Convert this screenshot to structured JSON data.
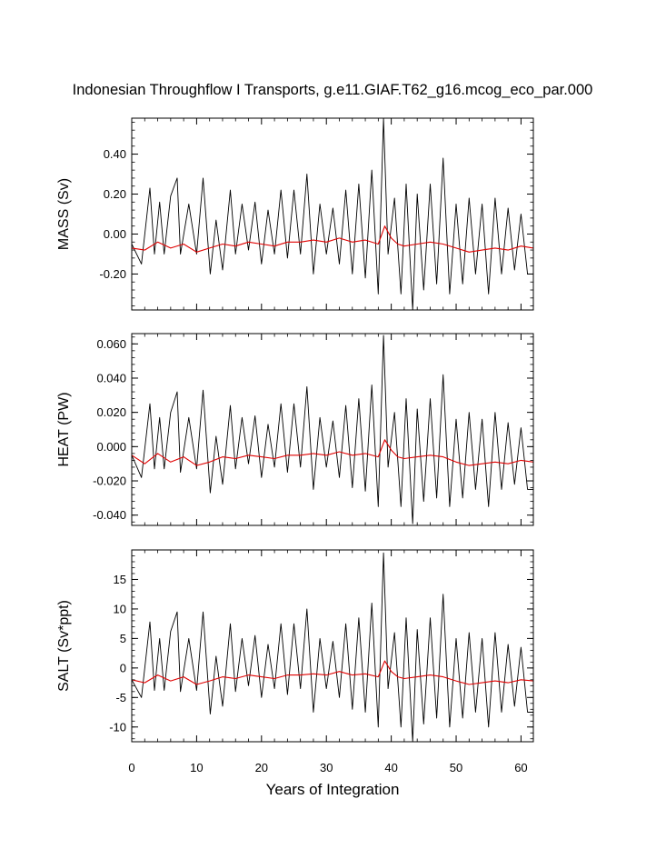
{
  "title": "Indonesian Throughflow I Transports, g.e11.GIAF.T62_g16.mcog_eco_par.000",
  "xlabel": "Years of Integration",
  "colors": {
    "monthly": "#000000",
    "annual": "#e00000",
    "axes": "#000000"
  },
  "chart_data": [
    {
      "type": "line",
      "name": "mass",
      "ylabel": "MASS (Sv)",
      "xlim": [
        0,
        61.9
      ],
      "ylim": [
        -0.38,
        0.58
      ],
      "yticks": [
        -0.2,
        0.0,
        0.2,
        0.4
      ],
      "yticklabels": [
        "-0.20",
        "0.00",
        "0.20",
        "0.40"
      ],
      "xticks": [
        0,
        10,
        20,
        30,
        40,
        50,
        60
      ],
      "xticklabels": [
        "0",
        "10",
        "20",
        "30",
        "40",
        "50",
        "60"
      ],
      "grid": false,
      "series": [
        {
          "role": "monthly",
          "x": [
            0,
            1.5,
            2.8,
            3.5,
            4.3,
            5.0,
            6.0,
            7.0,
            7.5,
            8.8,
            10.0,
            11.0,
            12.1,
            13.0,
            14.0,
            15.2,
            16.0,
            17.0,
            18.0,
            19.0,
            20.0,
            21.0,
            22.0,
            23.0,
            24.0,
            25.0,
            26.0,
            27.0,
            28.0,
            29.0,
            30.0,
            31.0,
            32.0,
            33.0,
            34.0,
            35.0,
            36.0,
            37.0,
            38.0,
            38.8,
            39.5,
            40.5,
            41.5,
            42.3,
            43.3,
            44.0,
            45.0,
            46.0,
            47.0,
            48.0,
            49.0,
            50.0,
            51.0,
            52.0,
            53.0,
            54.0,
            55.0,
            56.0,
            57.0,
            58.0,
            59.0,
            60.0,
            61.0,
            61.9
          ],
          "values": [
            -0.05,
            -0.15,
            0.23,
            -0.1,
            0.16,
            -0.1,
            0.19,
            0.28,
            -0.1,
            0.15,
            -0.1,
            0.28,
            -0.2,
            0.07,
            -0.18,
            0.22,
            -0.1,
            0.15,
            -0.08,
            0.16,
            -0.15,
            0.12,
            -0.1,
            0.22,
            -0.12,
            0.22,
            -0.1,
            0.3,
            -0.2,
            0.15,
            -0.1,
            0.13,
            -0.15,
            0.22,
            -0.2,
            0.25,
            -0.22,
            0.32,
            -0.3,
            0.58,
            -0.1,
            0.18,
            -0.3,
            0.25,
            -0.38,
            0.2,
            -0.28,
            0.25,
            -0.25,
            0.38,
            -0.3,
            0.15,
            -0.25,
            0.18,
            -0.2,
            0.15,
            -0.3,
            0.18,
            -0.2,
            0.13,
            -0.18,
            0.1,
            -0.2,
            -0.2
          ]
        },
        {
          "role": "annual",
          "x": [
            0,
            2,
            4,
            6,
            8,
            10,
            12,
            14,
            16,
            18,
            20,
            22,
            24,
            26,
            28,
            30,
            32,
            34,
            36,
            38,
            39,
            40,
            41,
            42,
            44,
            46,
            48,
            50,
            52,
            54,
            56,
            58,
            60,
            61.9
          ],
          "values": [
            -0.07,
            -0.08,
            -0.04,
            -0.07,
            -0.05,
            -0.09,
            -0.07,
            -0.05,
            -0.06,
            -0.04,
            -0.05,
            -0.06,
            -0.04,
            -0.04,
            -0.03,
            -0.04,
            -0.02,
            -0.04,
            -0.03,
            -0.05,
            0.04,
            -0.02,
            -0.05,
            -0.06,
            -0.05,
            -0.04,
            -0.05,
            -0.07,
            -0.09,
            -0.08,
            -0.07,
            -0.08,
            -0.06,
            -0.07
          ]
        }
      ]
    },
    {
      "type": "line",
      "name": "heat",
      "ylabel": "HEAT (PW)",
      "xlim": [
        0,
        61.9
      ],
      "ylim": [
        -0.046,
        0.066
      ],
      "yticks": [
        -0.04,
        -0.02,
        0.0,
        0.02,
        0.04,
        0.06
      ],
      "yticklabels": [
        "-0.040",
        "-0.020",
        "0.000",
        "0.020",
        "0.040",
        "0.060"
      ],
      "xticks": [
        0,
        10,
        20,
        30,
        40,
        50,
        60
      ],
      "xticklabels": [
        "0",
        "10",
        "20",
        "30",
        "40",
        "50",
        "60"
      ],
      "grid": false,
      "series": [
        {
          "role": "monthly",
          "x": [
            0,
            1.5,
            2.8,
            3.5,
            4.3,
            5.0,
            6.0,
            7.0,
            7.5,
            8.8,
            10.0,
            11.0,
            12.1,
            13.0,
            14.0,
            15.2,
            16.0,
            17.0,
            18.0,
            19.0,
            20.0,
            21.0,
            22.0,
            23.0,
            24.0,
            25.0,
            26.0,
            27.0,
            28.0,
            29.0,
            30.0,
            31.0,
            32.0,
            33.0,
            34.0,
            35.0,
            36.0,
            37.0,
            38.0,
            38.8,
            39.5,
            40.5,
            41.5,
            42.3,
            43.3,
            44.0,
            45.0,
            46.0,
            47.0,
            48.0,
            49.0,
            50.0,
            51.0,
            52.0,
            53.0,
            54.0,
            55.0,
            56.0,
            57.0,
            58.0,
            59.0,
            60.0,
            61.0,
            61.9
          ],
          "values": [
            -0.005,
            -0.018,
            0.025,
            -0.013,
            0.017,
            -0.013,
            0.02,
            0.032,
            -0.015,
            0.017,
            -0.013,
            0.033,
            -0.027,
            0.006,
            -0.022,
            0.024,
            -0.013,
            0.017,
            -0.01,
            0.018,
            -0.018,
            0.013,
            -0.012,
            0.025,
            -0.015,
            0.025,
            -0.012,
            0.035,
            -0.025,
            0.017,
            -0.012,
            0.015,
            -0.018,
            0.024,
            -0.024,
            0.028,
            -0.026,
            0.036,
            -0.035,
            0.065,
            -0.012,
            0.02,
            -0.035,
            0.028,
            -0.045,
            0.022,
            -0.032,
            0.028,
            -0.03,
            0.042,
            -0.035,
            0.016,
            -0.03,
            0.02,
            -0.025,
            0.016,
            -0.035,
            0.02,
            -0.025,
            0.014,
            -0.022,
            0.011,
            -0.025,
            -0.025
          ]
        },
        {
          "role": "annual",
          "x": [
            0,
            2,
            4,
            6,
            8,
            10,
            12,
            14,
            16,
            18,
            20,
            22,
            24,
            26,
            28,
            30,
            32,
            34,
            36,
            38,
            39,
            40,
            41,
            42,
            44,
            46,
            48,
            50,
            52,
            54,
            56,
            58,
            60,
            61.9
          ],
          "values": [
            -0.005,
            -0.01,
            -0.004,
            -0.009,
            -0.006,
            -0.011,
            -0.009,
            -0.006,
            -0.007,
            -0.005,
            -0.006,
            -0.007,
            -0.005,
            -0.005,
            -0.004,
            -0.005,
            -0.003,
            -0.005,
            -0.004,
            -0.006,
            0.004,
            -0.002,
            -0.006,
            -0.007,
            -0.006,
            -0.005,
            -0.006,
            -0.009,
            -0.011,
            -0.01,
            -0.009,
            -0.01,
            -0.008,
            -0.009
          ]
        }
      ]
    },
    {
      "type": "line",
      "name": "salt",
      "ylabel": "SALT (Sv*ppt)",
      "xlim": [
        0,
        61.9
      ],
      "ylim": [
        -12.5,
        20.0
      ],
      "yticks": [
        -10,
        -5,
        0,
        5,
        10,
        15
      ],
      "yticklabels": [
        "-10",
        "-5",
        "0",
        "5",
        "10",
        "15"
      ],
      "xticks": [
        0,
        10,
        20,
        30,
        40,
        50,
        60
      ],
      "xticklabels": [
        "0",
        "10",
        "20",
        "30",
        "40",
        "50",
        "60"
      ],
      "grid": false,
      "series": [
        {
          "role": "monthly",
          "x": [
            0,
            1.5,
            2.8,
            3.5,
            4.3,
            5.0,
            6.0,
            7.0,
            7.5,
            8.8,
            10.0,
            11.0,
            12.1,
            13.0,
            14.0,
            15.2,
            16.0,
            17.0,
            18.0,
            19.0,
            20.0,
            21.0,
            22.0,
            23.0,
            24.0,
            25.0,
            26.0,
            27.0,
            28.0,
            29.0,
            30.0,
            31.0,
            32.0,
            33.0,
            34.0,
            35.0,
            36.0,
            37.0,
            38.0,
            38.8,
            39.5,
            40.5,
            41.5,
            42.3,
            43.3,
            44.0,
            45.0,
            46.0,
            47.0,
            48.0,
            49.0,
            50.0,
            51.0,
            52.0,
            53.0,
            54.0,
            55.0,
            56.0,
            57.0,
            58.0,
            59.0,
            60.0,
            61.0,
            61.9
          ],
          "values": [
            -2.0,
            -5.0,
            7.8,
            -3.8,
            5.0,
            -3.8,
            6.2,
            9.5,
            -4.0,
            5.0,
            -3.8,
            9.5,
            -7.8,
            2.0,
            -6.5,
            7.5,
            -4.0,
            5.0,
            -3.0,
            5.5,
            -5.0,
            4.0,
            -3.5,
            7.5,
            -4.5,
            7.5,
            -3.5,
            10.0,
            -7.5,
            5.0,
            -3.5,
            4.5,
            -5.0,
            7.5,
            -7.0,
            8.5,
            -7.5,
            11.0,
            -10.0,
            19.5,
            -3.5,
            6.0,
            -10.0,
            8.5,
            -12.5,
            6.5,
            -9.5,
            8.5,
            -8.5,
            12.5,
            -10.0,
            5.0,
            -8.5,
            6.0,
            -7.5,
            5.0,
            -10.0,
            6.0,
            -7.5,
            4.0,
            -6.5,
            3.5,
            -7.5,
            -7.5
          ]
        },
        {
          "role": "annual",
          "x": [
            0,
            2,
            4,
            6,
            8,
            10,
            12,
            14,
            16,
            18,
            20,
            22,
            24,
            26,
            28,
            30,
            32,
            34,
            36,
            38,
            39,
            40,
            41,
            42,
            44,
            46,
            48,
            50,
            52,
            54,
            56,
            58,
            60,
            61.9
          ],
          "values": [
            -2.0,
            -2.5,
            -1.2,
            -2.2,
            -1.5,
            -2.8,
            -2.2,
            -1.5,
            -1.8,
            -1.2,
            -1.5,
            -1.8,
            -1.2,
            -1.2,
            -1.0,
            -1.2,
            -0.6,
            -1.2,
            -1.0,
            -1.5,
            1.2,
            -0.6,
            -1.5,
            -1.8,
            -1.5,
            -1.2,
            -1.5,
            -2.2,
            -2.8,
            -2.5,
            -2.2,
            -2.5,
            -2.0,
            -2.2
          ]
        }
      ]
    }
  ]
}
